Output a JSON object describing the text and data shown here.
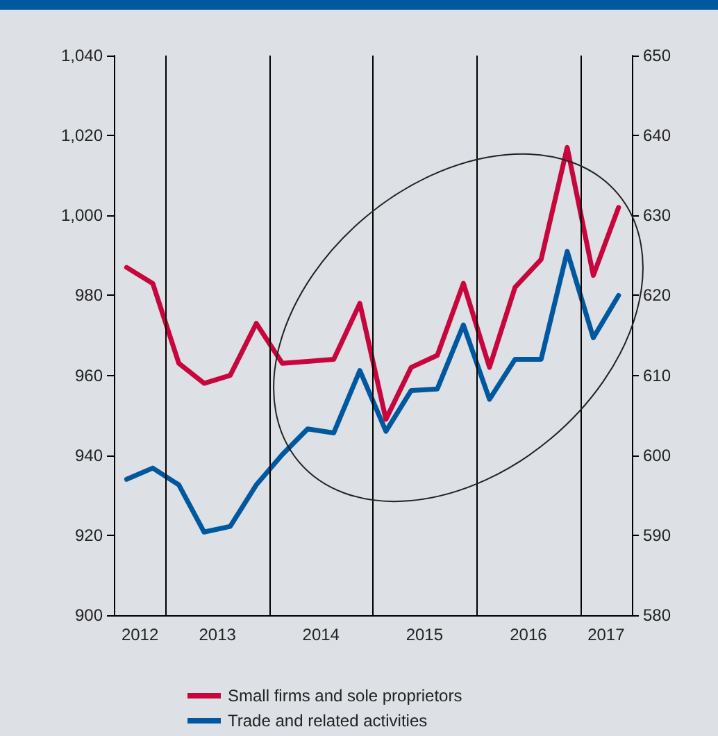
{
  "chart_data": {
    "type": "line",
    "x": [
      "2012-08-15",
      "2012-11-15",
      "2013-02-15",
      "2013-05-15",
      "2013-08-15",
      "2013-11-15",
      "2014-02-15",
      "2014-05-15",
      "2014-08-15",
      "2014-11-15",
      "2015-02-15",
      "2015-05-15",
      "2015-08-15",
      "2015-11-15",
      "2016-02-15",
      "2016-05-15",
      "2016-08-15",
      "2016-11-15",
      "2017-02-15",
      "2017-05-15"
    ],
    "series": [
      {
        "name": "Small firms and sole proprietors",
        "color": "#c8063e",
        "values": [
          987,
          983,
          963,
          958,
          960,
          973,
          963,
          963.5,
          964,
          978,
          949,
          962,
          965,
          983,
          962,
          982,
          989,
          1017,
          985,
          1002
        ]
      },
      {
        "name": "Trade and related activities",
        "color": "#0058a0",
        "axis": "y2",
        "values": [
          597,
          598.4,
          596.3,
          590.4,
          591.1,
          596.3,
          600.1,
          603.3,
          602.8,
          610.6,
          603,
          608.1,
          608.3,
          616.3,
          607,
          612,
          612,
          625.5,
          614.7,
          620
        ]
      }
    ],
    "xlim": [
      "2012-07-01",
      "2017-07-01"
    ],
    "xticks": [
      {
        "value": "2012-10-01",
        "label": "2012"
      },
      {
        "value": "2013-07-01",
        "label": "2013"
      },
      {
        "value": "2014-07-01",
        "label": "2014"
      },
      {
        "value": "2015-07-01",
        "label": "2015"
      },
      {
        "value": "2016-07-01",
        "label": "2016"
      },
      {
        "value": "2017-04-01",
        "label": "2017"
      }
    ],
    "ylim": [
      900,
      1040
    ],
    "yticks": [
      900,
      920,
      940,
      960,
      980,
      {
        "value": 1000,
        "label": "1,000"
      },
      {
        "value": 1020,
        "label": "1,020"
      },
      {
        "value": 1040,
        "label": "1,040"
      }
    ],
    "y2lim": [
      580,
      650
    ],
    "y2ticks": [
      580,
      590,
      600,
      610,
      620,
      630,
      640,
      650
    ],
    "ref_lines": [
      {
        "axis": "x",
        "value": "2013-01-01",
        "color": "#000000"
      },
      {
        "axis": "x",
        "value": "2014-01-01",
        "color": "#000000"
      },
      {
        "axis": "x",
        "value": "2015-01-01",
        "color": "#000000"
      },
      {
        "axis": "x",
        "value": "2016-01-01",
        "color": "#000000"
      },
      {
        "axis": "x",
        "value": "2017-01-01",
        "color": "#000000"
      }
    ],
    "grid": false,
    "legend": "bottom",
    "marker": "none",
    "line_style": "solid"
  }
}
